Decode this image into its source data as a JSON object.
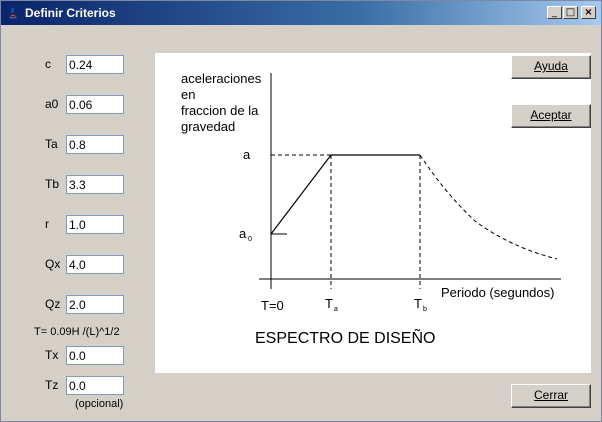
{
  "window": {
    "title": "Definir Criterios"
  },
  "fields": [
    {
      "label": "c",
      "value": "0.24"
    },
    {
      "label": "a0",
      "value": "0.06"
    },
    {
      "label": "Ta",
      "value": "0.8"
    },
    {
      "label": "Tb",
      "value": "3.3"
    },
    {
      "label": "r",
      "value": "1.0"
    },
    {
      "label": "Qx",
      "value": "4.0"
    },
    {
      "label": "Qz",
      "value": "2.0"
    }
  ],
  "formula": "T= 0.09H /(L)^1/2",
  "tx": {
    "label": "Tx",
    "value": "0.0"
  },
  "tz": {
    "label": "Tz",
    "value": "0.0"
  },
  "optional_note": "(opcional)",
  "buttons": {
    "help": "Ayuda",
    "accept": "Aceptar",
    "close": "Cerrar"
  },
  "diagram": {
    "y_axis_label": [
      "aceleraciones",
      "en",
      "fraccion de la",
      "gravedad"
    ],
    "label_a": "a",
    "label_a0": "a",
    "label_a0_sub": "0",
    "label_t0": "T=0",
    "label_ta": "T",
    "label_ta_sub": "a",
    "label_tb": "T",
    "label_tb_sub": "b",
    "x_axis_label": "Periodo (segundos)",
    "title": "ESPECTRO DE DISEÑO"
  }
}
